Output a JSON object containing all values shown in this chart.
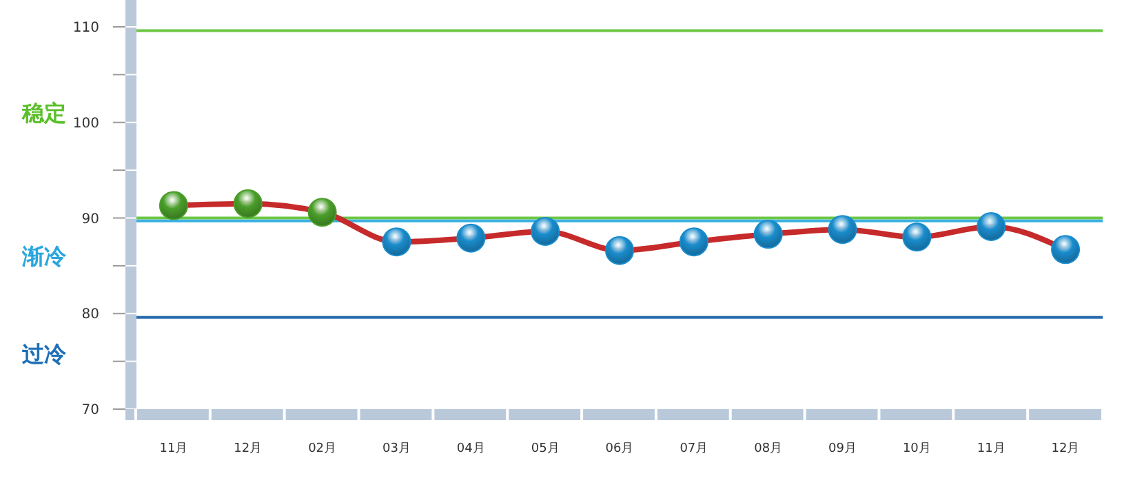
{
  "chart_data": {
    "type": "line",
    "categories": [
      "11月",
      "12月",
      "02月",
      "03月",
      "04月",
      "05月",
      "06月",
      "07月",
      "08月",
      "09月",
      "10月",
      "11月",
      "12月"
    ],
    "series": [
      {
        "color": "#c62a2a",
        "values": [
          91.3,
          91.5,
          90.6,
          87.5,
          87.9,
          88.6,
          86.6,
          87.5,
          88.3,
          88.8,
          88.0,
          89.1,
          86.7
        ],
        "colors": [
          "#4a9e2a",
          "#4a9e2a",
          "#4a9e2a",
          "#1a8ccc",
          "#1a8ccc",
          "#1a8ccc",
          "#1a8ccc",
          "#1a8ccc",
          "#1a8ccc",
          "#1a8ccc",
          "#1a8ccc",
          "#1a8ccc",
          "#1a8ccc"
        ]
      }
    ],
    "ylim": [
      70,
      110
    ],
    "yticks": [
      70,
      {
        "value": 75,
        "label": null
      },
      80,
      {
        "value": 85,
        "label": null
      },
      90,
      {
        "value": 95,
        "label": null
      },
      100,
      {
        "value": 105,
        "label": null
      },
      110
    ],
    "ref_lines": [
      {
        "axis": "y",
        "value": 109.6,
        "color": "#6cc644"
      },
      {
        "axis": "y",
        "value": 90,
        "color": "#6cc644"
      },
      {
        "axis": "y",
        "value": 89.7,
        "color": "#38b0e0"
      },
      {
        "axis": "y",
        "value": 79.6,
        "color": "#2a6db0"
      }
    ],
    "annotations": [
      "稳定",
      "渐冷",
      "过冷"
    ],
    "marker": "circle",
    "grid": false
  }
}
